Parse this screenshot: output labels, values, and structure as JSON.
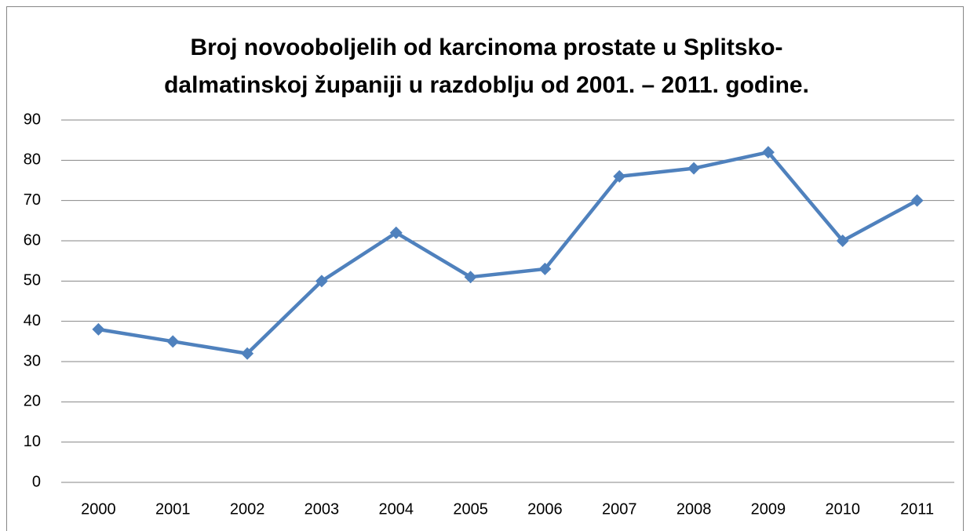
{
  "chart_data": {
    "type": "line",
    "title": [
      "Broj novooboljelih od karcinoma prostate u Splitsko-",
      "dalmatinskoj županiji u razdoblju od 2001. – 2011. godine."
    ],
    "categories": [
      "2000",
      "2001",
      "2002",
      "2003",
      "2004",
      "2005",
      "2006",
      "2007",
      "2008",
      "2009",
      "2010",
      "2011"
    ],
    "series": [
      {
        "color": "#4f81bd",
        "values": [
          38,
          35,
          32,
          50,
          62,
          51,
          53,
          76,
          78,
          82,
          60,
          70
        ]
      }
    ],
    "ylim": [
      0,
      90
    ],
    "yticks": [
      0,
      10,
      20,
      30,
      40,
      50,
      60,
      70,
      80,
      90
    ],
    "grid": true
  }
}
